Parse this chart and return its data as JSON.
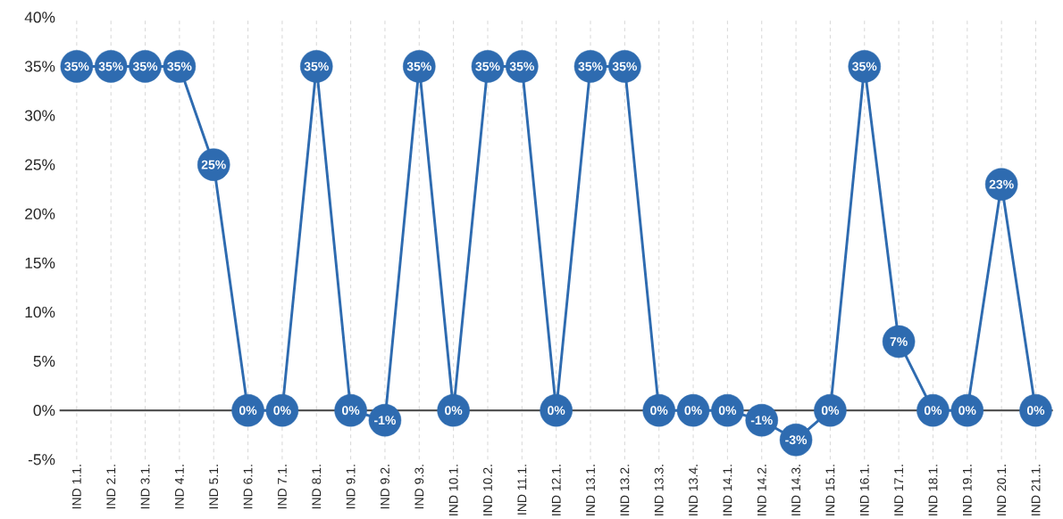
{
  "chart_data": {
    "type": "line",
    "categories": [
      "IND 1.1.",
      "IND 2.1.",
      "IND 3.1.",
      "IND 4.1.",
      "IND 5.1.",
      "IND 6.1.",
      "IND 7.1.",
      "IND 8.1.",
      "IND 9.1.",
      "IND 9.2.",
      "IND 9.3.",
      "IND 10.1.",
      "IND 10.2.",
      "IND 11.1.",
      "IND 12.1.",
      "IND 13.1.",
      "IND 13.2.",
      "IND 13.3.",
      "IND 13.4.",
      "IND 14.1.",
      "IND 14.2.",
      "IND 14.3.",
      "IND 15.1.",
      "IND 16.1.",
      "IND 17.1.",
      "IND 18.1.",
      "IND 19.1.",
      "IND 20.1.",
      "IND 21.1."
    ],
    "values": [
      35,
      35,
      35,
      35,
      25,
      0,
      0,
      35,
      0,
      -1,
      35,
      0,
      35,
      35,
      0,
      35,
      35,
      0,
      0,
      0,
      -1,
      -3,
      0,
      35,
      7,
      0,
      0,
      23,
      0
    ],
    "value_labels": [
      "35%",
      "35%",
      "35%",
      "35%",
      "25%",
      "0%",
      "0%",
      "35%",
      "0%",
      "-1%",
      "35%",
      "0%",
      "35%",
      "35%",
      "0%",
      "35%",
      "35%",
      "0%",
      "0%",
      "0%",
      "-1%",
      "-3%",
      "0%",
      "35%",
      "7%",
      "0%",
      "0%",
      "23%",
      "0%"
    ],
    "color": "#2e6bb0",
    "ylim": [
      -5,
      40
    ],
    "yticks": [
      {
        "value": -5,
        "label": "-5%"
      },
      {
        "value": 0,
        "label": "0%"
      },
      {
        "value": 5,
        "label": "5%"
      },
      {
        "value": 10,
        "label": "10%"
      },
      {
        "value": 15,
        "label": "15%"
      },
      {
        "value": 20,
        "label": "20%"
      },
      {
        "value": 25,
        "label": "25%"
      },
      {
        "value": 30,
        "label": "30%"
      },
      {
        "value": 35,
        "label": "35%"
      },
      {
        "value": 40,
        "label": "40%"
      }
    ],
    "ref_lines": [
      {
        "axis": "y",
        "value": 0,
        "color": "#404040"
      }
    ],
    "grid": "x",
    "marker": "circle",
    "line_style": "solid"
  }
}
